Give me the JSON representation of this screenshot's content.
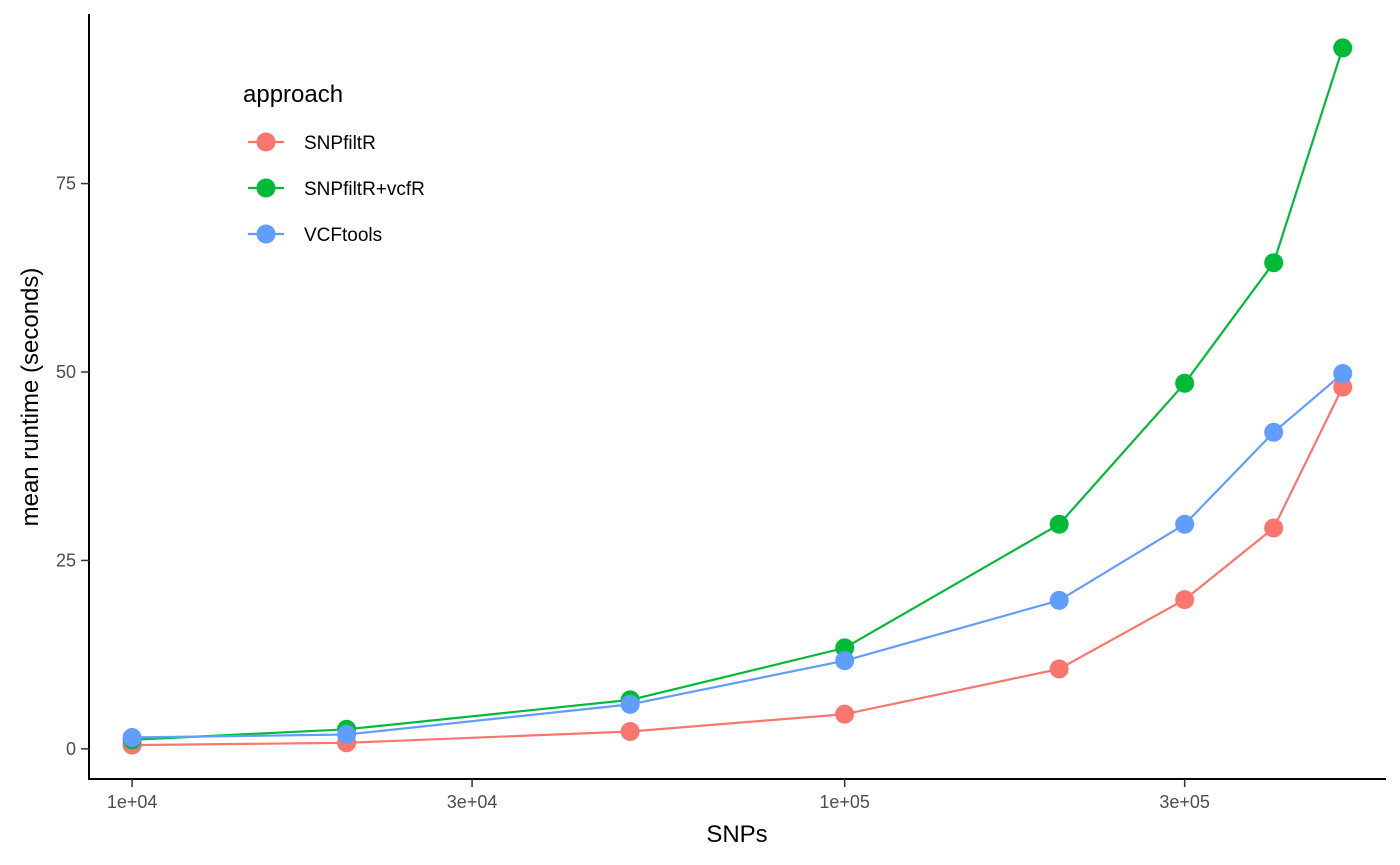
{
  "chart_data": {
    "type": "line",
    "xlabel": "SNPs",
    "ylabel": "mean runtime (seconds)",
    "x_scale": "log10",
    "x": [
      10000,
      20000,
      50000,
      100000,
      200000,
      300000,
      400000,
      500000
    ],
    "x_ticks": [
      10000,
      30000,
      100000,
      300000
    ],
    "x_tick_labels": [
      "1e+04",
      "3e+04",
      "1e+05",
      "3e+05"
    ],
    "y_ticks": [
      0,
      25,
      50,
      75
    ],
    "y_tick_labels": [
      "0",
      "25",
      "50",
      "75"
    ],
    "xlim": [
      8700,
      575000
    ],
    "ylim": [
      -4,
      97.5
    ],
    "grid": false,
    "legend": {
      "title": "approach",
      "position": "top-left"
    },
    "series": [
      {
        "name": "SNPfiltR",
        "color": "#F8766D",
        "values": [
          0.5,
          0.8,
          2.3,
          4.6,
          10.6,
          19.8,
          29.3,
          48.0
        ]
      },
      {
        "name": "SNPfiltR+vcfR",
        "color": "#00BA38",
        "values": [
          1.2,
          2.6,
          6.5,
          13.4,
          29.8,
          48.5,
          64.5,
          93.0
        ]
      },
      {
        "name": "VCFtools",
        "color": "#619CFF",
        "values": [
          1.5,
          1.9,
          5.9,
          11.7,
          19.7,
          29.8,
          42.0,
          49.8
        ]
      }
    ]
  }
}
